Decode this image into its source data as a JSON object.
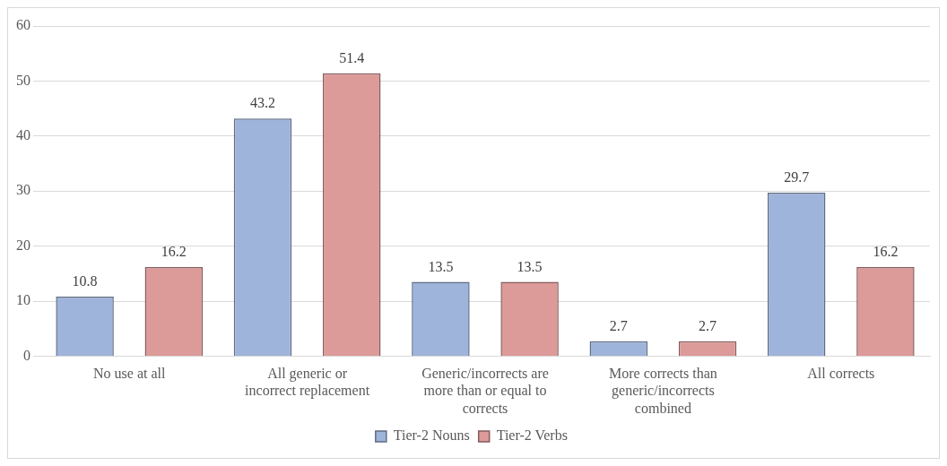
{
  "chart_data": {
    "type": "bar",
    "categories": [
      "No use at all",
      "All generic or incorrect replacement",
      "Generic/incorrects are more than or equal to corrects",
      "More corrects than generic/incorrects combined",
      "All corrects"
    ],
    "series": [
      {
        "name": "Tier-2 Nouns",
        "color": "#9fb4db",
        "values": [
          10.8,
          43.2,
          13.5,
          2.7,
          29.7
        ]
      },
      {
        "name": "Tier-2 Verbs",
        "color": "#dc9a99",
        "values": [
          16.2,
          51.4,
          13.5,
          2.7,
          16.2
        ]
      }
    ],
    "ylim": [
      0,
      60
    ],
    "yticks": [
      0,
      10,
      20,
      30,
      40,
      50,
      60
    ],
    "grid": "y",
    "legend": "bottom",
    "data_labels": true
  }
}
